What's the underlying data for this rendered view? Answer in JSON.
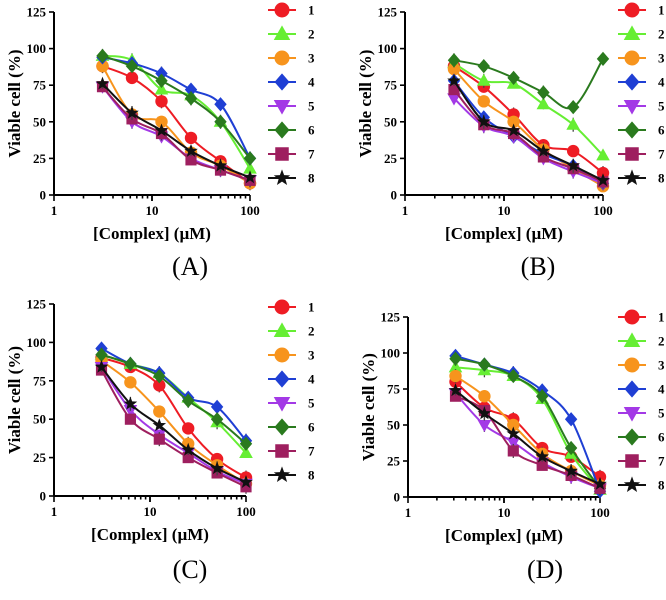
{
  "chart_data": [
    {
      "type": "scatter",
      "panel_label": "(A)",
      "xlabel": "[Complex] (µM)",
      "ylabel": "Viable cell (%)",
      "xscale": "log",
      "xlim": [
        1,
        100
      ],
      "ylim": [
        0,
        125
      ],
      "xticks": [
        1,
        10,
        100
      ],
      "yticks": [
        0,
        25,
        50,
        75,
        100,
        125
      ],
      "x": [
        3.125,
        6.25,
        12.5,
        25,
        50,
        100
      ],
      "series": [
        {
          "name": "1",
          "values": [
            88,
            80,
            64,
            39,
            23,
            8
          ]
        },
        {
          "name": "2",
          "values": [
            95,
            92,
            72,
            68,
            50,
            18
          ]
        },
        {
          "name": "3",
          "values": [
            88,
            55,
            50,
            29,
            20,
            8
          ]
        },
        {
          "name": "4",
          "values": [
            94,
            90,
            83,
            72,
            62,
            25
          ]
        },
        {
          "name": "5",
          "values": [
            74,
            50,
            40,
            25,
            17,
            10
          ]
        },
        {
          "name": "6",
          "values": [
            95,
            88,
            78,
            66,
            50,
            25
          ]
        },
        {
          "name": "7",
          "values": [
            74,
            52,
            42,
            24,
            17,
            10
          ]
        },
        {
          "name": "8",
          "values": [
            76,
            56,
            44,
            30,
            20,
            12
          ]
        }
      ]
    },
    {
      "type": "scatter",
      "panel_label": "(B)",
      "xlabel": "[Complex] (µM)",
      "ylabel": "Viable cell (%)",
      "xscale": "log",
      "xlim": [
        1,
        100
      ],
      "ylim": [
        0,
        125
      ],
      "xticks": [
        1,
        10,
        100
      ],
      "yticks": [
        0,
        25,
        50,
        75,
        100,
        125
      ],
      "x": [
        3.125,
        6.25,
        12.5,
        25,
        50,
        100
      ],
      "series": [
        {
          "name": "1",
          "values": [
            88,
            74,
            55,
            34,
            30,
            15
          ]
        },
        {
          "name": "2",
          "values": [
            90,
            78,
            76,
            62,
            48,
            27
          ]
        },
        {
          "name": "3",
          "values": [
            86,
            64,
            50,
            31,
            18,
            6
          ]
        },
        {
          "name": "4",
          "values": [
            78,
            53,
            40,
            28,
            20,
            8
          ]
        },
        {
          "name": "5",
          "values": [
            66,
            47,
            40,
            25,
            16,
            8
          ]
        },
        {
          "name": "6",
          "values": [
            92,
            88,
            80,
            70,
            60,
            93
          ]
        },
        {
          "name": "7",
          "values": [
            72,
            48,
            42,
            26,
            18,
            9
          ]
        },
        {
          "name": "8",
          "values": [
            78,
            50,
            44,
            30,
            20,
            10
          ]
        }
      ]
    },
    {
      "type": "scatter",
      "panel_label": "(C)",
      "xlabel": "[Complex] (µM)",
      "ylabel": "Viable cell (%)",
      "xscale": "log",
      "xlim": [
        1,
        100
      ],
      "ylim": [
        0,
        125
      ],
      "xticks": [
        1,
        10,
        100
      ],
      "yticks": [
        0,
        25,
        50,
        75,
        100,
        125
      ],
      "x": [
        3.125,
        6.25,
        12.5,
        25,
        50,
        100
      ],
      "series": [
        {
          "name": "1",
          "values": [
            90,
            84,
            72,
            44,
            24,
            12
          ]
        },
        {
          "name": "2",
          "values": [
            92,
            86,
            80,
            64,
            48,
            28
          ]
        },
        {
          "name": "3",
          "values": [
            88,
            74,
            55,
            34,
            20,
            8
          ]
        },
        {
          "name": "4",
          "values": [
            96,
            86,
            80,
            64,
            58,
            36
          ]
        },
        {
          "name": "5",
          "values": [
            84,
            56,
            40,
            28,
            16,
            8
          ]
        },
        {
          "name": "6",
          "values": [
            92,
            86,
            78,
            62,
            50,
            34
          ]
        },
        {
          "name": "7",
          "values": [
            82,
            50,
            37,
            25,
            15,
            6
          ]
        },
        {
          "name": "8",
          "values": [
            84,
            60,
            46,
            30,
            18,
            9
          ]
        }
      ]
    },
    {
      "type": "scatter",
      "panel_label": "(D)",
      "xlabel": "[Complex] (µM)",
      "ylabel": "Viable cell (%)",
      "xscale": "log",
      "xlim": [
        1,
        100
      ],
      "ylim": [
        0,
        125
      ],
      "xticks": [
        1,
        10,
        100
      ],
      "yticks": [
        0,
        25,
        50,
        75,
        100,
        125
      ],
      "x": [
        3.125,
        6.25,
        12.5,
        25,
        50,
        100
      ],
      "series": [
        {
          "name": "1",
          "values": [
            80,
            62,
            54,
            34,
            28,
            14
          ]
        },
        {
          "name": "2",
          "values": [
            90,
            88,
            84,
            68,
            30,
            5
          ]
        },
        {
          "name": "3",
          "values": [
            84,
            70,
            50,
            30,
            18,
            8
          ]
        },
        {
          "name": "4",
          "values": [
            98,
            92,
            86,
            74,
            54,
            4
          ]
        },
        {
          "name": "5",
          "values": [
            72,
            50,
            38,
            24,
            14,
            6
          ]
        },
        {
          "name": "6",
          "values": [
            96,
            92,
            84,
            70,
            34,
            6
          ]
        },
        {
          "name": "7",
          "values": [
            70,
            60,
            32,
            22,
            15,
            6
          ]
        },
        {
          "name": "8",
          "values": [
            74,
            58,
            44,
            28,
            18,
            9
          ]
        }
      ]
    }
  ],
  "legend": {
    "entries": [
      "1",
      "2",
      "3",
      "4",
      "5",
      "6",
      "7",
      "8"
    ],
    "colors": [
      "#ee1c24",
      "#66ee33",
      "#f7941d",
      "#1f3fd4",
      "#a339e6",
      "#2a7a1e",
      "#9e1f5f",
      "#111111"
    ],
    "markers": [
      "circle",
      "triangle-up",
      "circle",
      "diamond",
      "triangle-down",
      "diamond",
      "square",
      "star"
    ]
  }
}
